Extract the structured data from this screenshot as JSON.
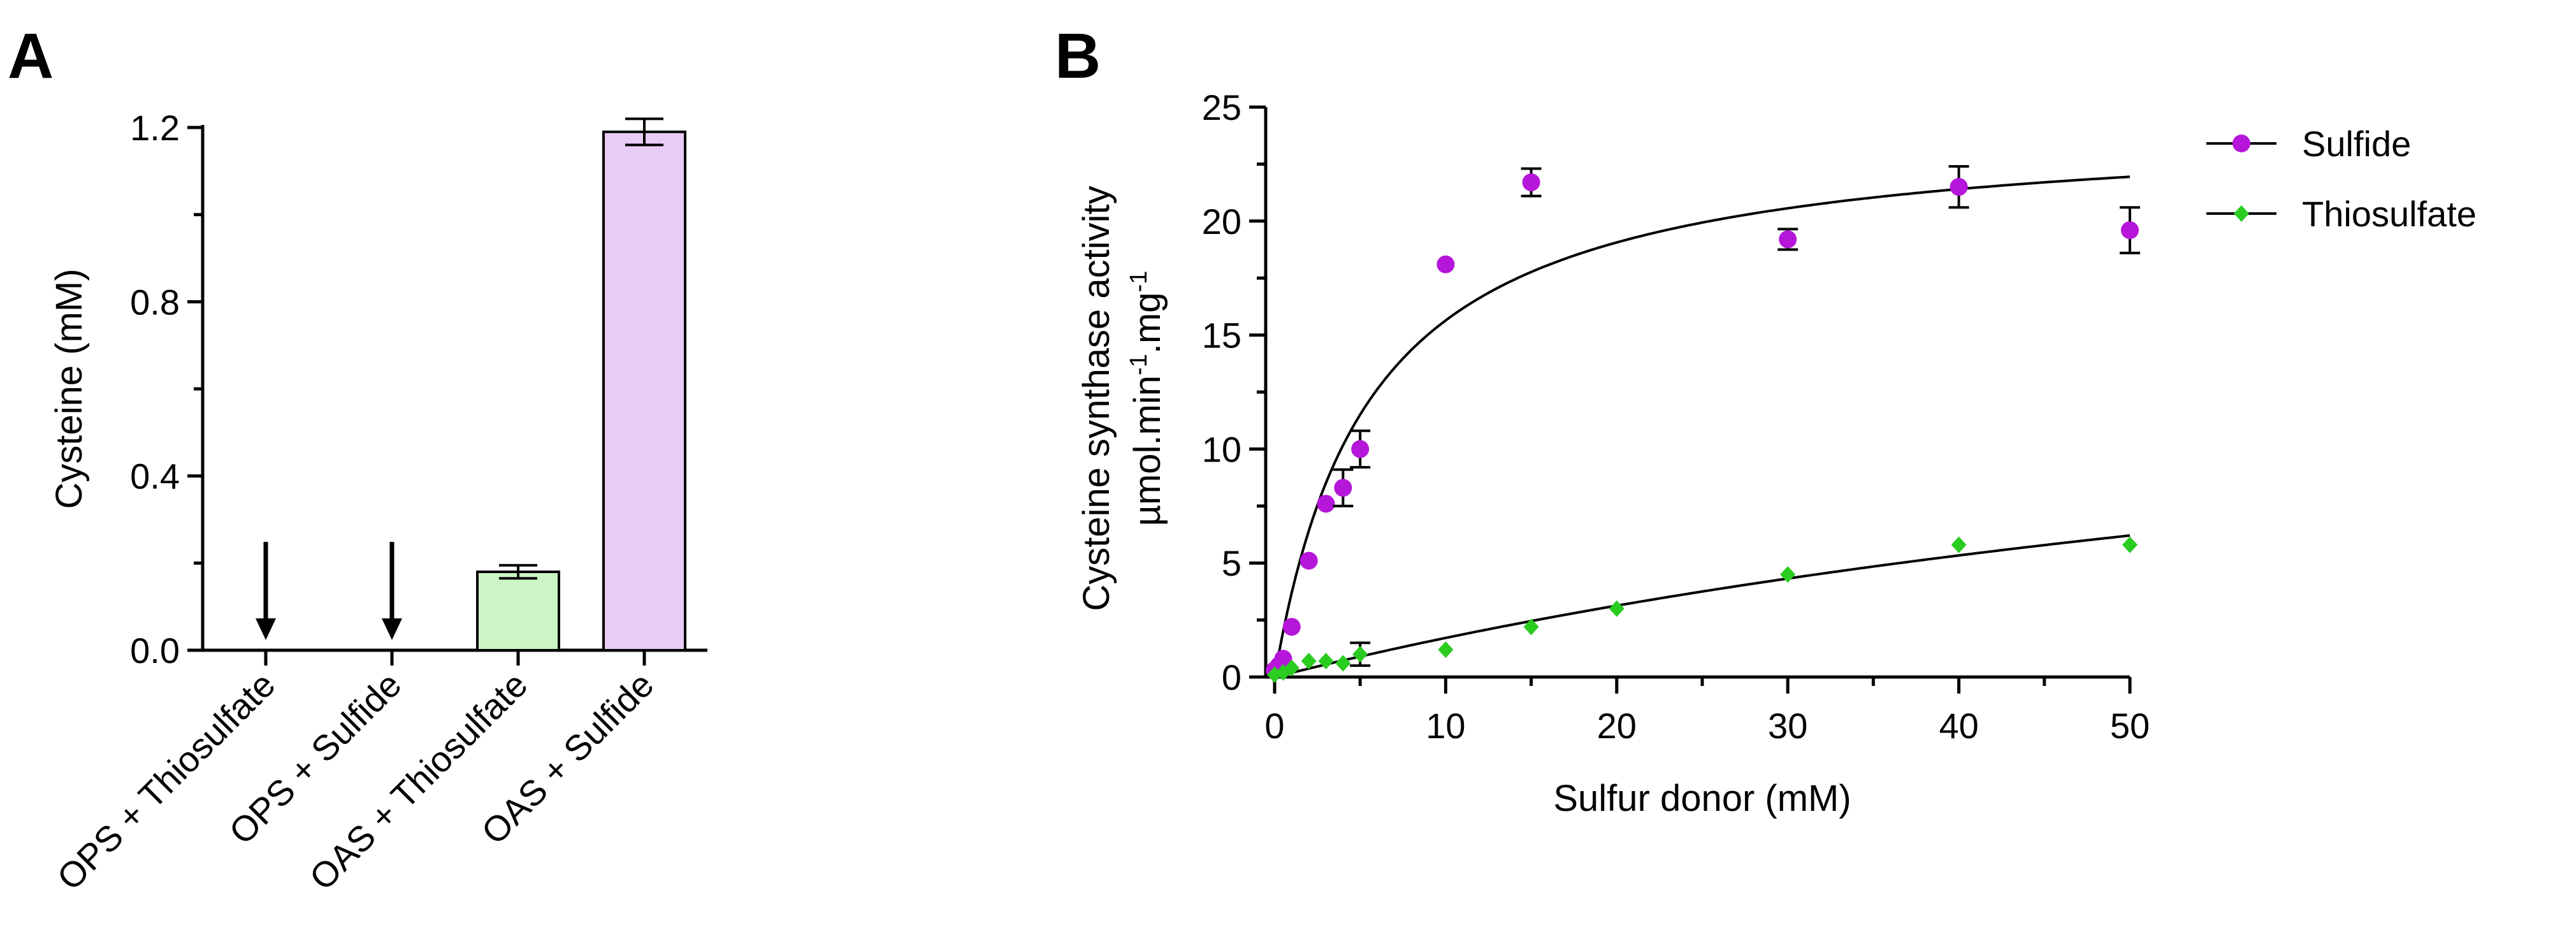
{
  "panel_a_letter": "A",
  "panel_b_letter": "B",
  "chart_data": [
    {
      "type": "bar",
      "panel": "A",
      "ylabel": "Cysteine (mM)",
      "xlabel": "",
      "ylim": [
        0,
        1.2
      ],
      "yticks": [
        "0.0",
        "0.4",
        "0.8",
        "1.2"
      ],
      "categories": [
        "OPS + Thiosulfate",
        "OPS + Sulfide",
        "OAS + Thiosulfate",
        "OAS + Sulfide"
      ],
      "values": [
        0,
        0,
        0.18,
        1.19
      ],
      "errors": [
        0,
        0,
        0.015,
        0.03
      ],
      "colors": [
        "#ffffff",
        "#ffffff",
        "#ccf5c5",
        "#e8ccf5"
      ],
      "arrows": [
        true,
        true,
        false,
        false
      ],
      "bar_border_color": "#000000"
    },
    {
      "type": "scatter",
      "panel": "B",
      "xlabel": "Sulfur donor (mM)",
      "ylabel_line1": "Cysteine synthase activity",
      "ylabel_line2_parts": [
        "µmol.min",
        "-1",
        ".mg",
        "-1"
      ],
      "xlim": [
        0,
        50
      ],
      "ylim": [
        0,
        25
      ],
      "xticks": [
        "0",
        "10",
        "20",
        "30",
        "40",
        "50"
      ],
      "yticks": [
        "0",
        "5",
        "10",
        "15",
        "20",
        "25"
      ],
      "legend_position": "top-right",
      "series": [
        {
          "name": "Sulfide",
          "color": "#b516d9",
          "marker": "circle",
          "x": [
            0,
            0.25,
            0.5,
            1,
            2,
            3,
            4,
            5,
            10,
            15,
            30,
            40,
            50
          ],
          "y": [
            0.3,
            0.5,
            0.8,
            2.2,
            5.1,
            7.6,
            8.3,
            10.0,
            18.1,
            21.7,
            19.2,
            21.5,
            19.6
          ],
          "err": [
            0,
            0,
            0,
            0,
            0,
            0,
            0.8,
            0.8,
            0,
            0.6,
            0.45,
            0.9,
            1.0
          ],
          "fit": {
            "model": "michaelis-menten",
            "vmax": 24.4,
            "km": 5.6
          }
        },
        {
          "name": "Thiosulfate",
          "color": "#29cc1f",
          "marker": "diamond",
          "x": [
            0,
            0.5,
            1,
            2,
            3,
            4,
            5,
            10,
            15,
            20,
            30,
            40,
            50
          ],
          "y": [
            0.1,
            0.2,
            0.4,
            0.7,
            0.7,
            0.6,
            1.0,
            1.2,
            2.2,
            3.0,
            4.5,
            5.8,
            5.8
          ],
          "err": [
            0,
            0,
            0,
            0,
            0,
            0,
            0.5,
            0,
            0,
            0,
            0,
            0,
            0
          ],
          "fit": {
            "model": "michaelis-menten",
            "vmax": 18.0,
            "km": 95
          }
        }
      ]
    }
  ]
}
